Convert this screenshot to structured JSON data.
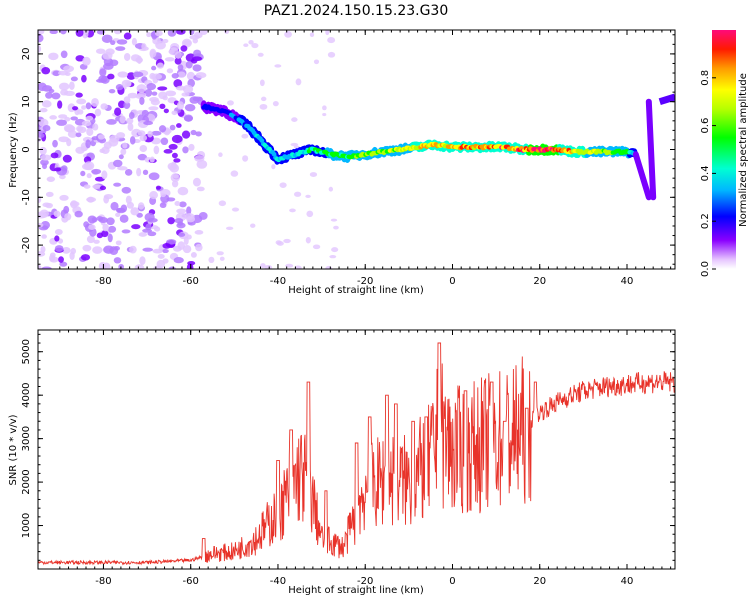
{
  "figure": {
    "title": "PAZ1.2024.150.15.23.G30"
  },
  "chart_data": [
    {
      "type": "heatmap",
      "title": "PAZ1.2024.150.15.23.G30",
      "xlabel": "Height of straight line (km)",
      "ylabel": "Frequency (Hz)",
      "xlim": [
        -95,
        51
      ],
      "ylim": [
        -25,
        25
      ],
      "xticks": [
        -80,
        -60,
        -40,
        -20,
        0,
        20,
        40
      ],
      "yticks": [
        -20,
        -10,
        0,
        10,
        20
      ],
      "colormap": "gist_rainbow_r",
      "ridge_frequency": {
        "x": [
          -57,
          -52,
          -47,
          -44,
          -40,
          -36,
          -32,
          -28,
          -24,
          -20,
          -16,
          -12,
          -8,
          -4,
          0,
          4,
          8,
          12,
          16,
          20,
          24,
          28,
          32,
          36,
          40,
          42
        ],
        "y": [
          9,
          8,
          5,
          2,
          -2,
          -1,
          0,
          -1,
          -1.5,
          -1,
          -0.5,
          0,
          0.5,
          1,
          0.5,
          0.5,
          0.5,
          0.5,
          0,
          0,
          0,
          -0.5,
          -0.5,
          -0.5,
          -0.5,
          -1
        ]
      },
      "ridge_amplitude": {
        "x": [
          -57,
          -52,
          -47,
          -44,
          -40,
          -36,
          -32,
          -28,
          -24,
          -20,
          -16,
          -12,
          -8,
          -4,
          0,
          4,
          8,
          12,
          16,
          20,
          24,
          28,
          32,
          36,
          40,
          42
        ],
        "amp": [
          0.15,
          0.2,
          0.3,
          0.35,
          0.4,
          0.35,
          0.45,
          0.5,
          0.55,
          0.6,
          0.65,
          0.7,
          0.75,
          0.8,
          0.8,
          0.85,
          0.9,
          0.9,
          0.9,
          1.0,
          0.95,
          0.8,
          0.7,
          0.6,
          0.55,
          0.3
        ]
      },
      "edge_ridge": {
        "x": [
          45,
          45.5,
          46
        ],
        "y": [
          10,
          0,
          -10
        ]
      },
      "noise_region_x": [
        -95,
        -57
      ]
    },
    {
      "type": "bar",
      "title": "Normalized spectral amplitude",
      "ylim": [
        0,
        1
      ],
      "yticks": [
        0.0,
        0.2,
        0.4,
        0.6,
        0.8
      ],
      "ytick_labels": [
        "0.0",
        "0.2",
        "0.4",
        "0.6",
        "0.8"
      ]
    },
    {
      "type": "line",
      "xlabel": "Height of straight line (km)",
      "ylabel": "SNR (10 * v/v)",
      "xlim": [
        -95,
        51
      ],
      "ylim": [
        0,
        5500
      ],
      "xticks": [
        -80,
        -60,
        -40,
        -20,
        0,
        20,
        40
      ],
      "yticks": [
        1000,
        2000,
        3000,
        4000,
        5000
      ],
      "line_color": "#e8332a",
      "series": [
        {
          "x": [
            -95,
            -80,
            -70,
            -60,
            -55,
            -50,
            -45,
            -40,
            -35,
            -33,
            -30,
            -25,
            -20,
            -15,
            -10,
            -5,
            -3,
            0,
            5,
            10,
            15,
            20,
            25,
            30,
            35,
            40,
            45,
            51
          ],
          "values": [
            150,
            150,
            150,
            200,
            350,
            400,
            700,
            1300,
            2200,
            2000,
            700,
            500,
            1800,
            2100,
            2000,
            2500,
            3200,
            2700,
            2800,
            3000,
            3100,
            3600,
            3900,
            4100,
            4200,
            4250,
            4300,
            4300
          ]
        }
      ],
      "spikes": {
        "x": [
          -57,
          -40,
          -37,
          -33,
          -29,
          -22,
          -19,
          -15,
          -13,
          -9,
          -6,
          -3,
          3,
          9,
          12,
          17,
          19
        ],
        "y": [
          700,
          2500,
          3200,
          4300,
          1800,
          2900,
          3500,
          4000,
          3800,
          3400,
          3500,
          5200,
          4100,
          4300,
          3400,
          3700,
          4300
        ]
      }
    }
  ]
}
